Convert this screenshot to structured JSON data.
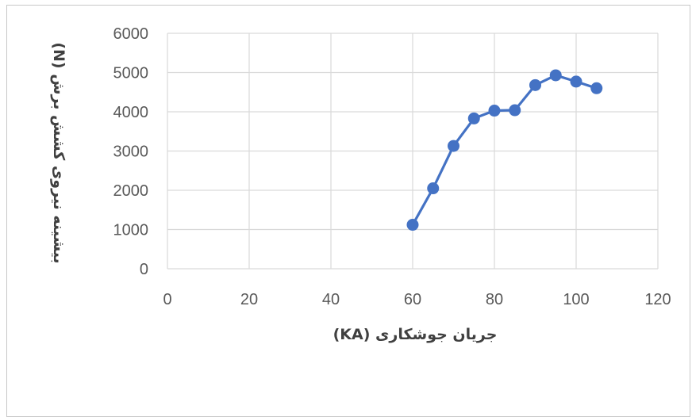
{
  "chart_data": {
    "type": "scatter",
    "xlabel": "جریان جوشکاری (KA)",
    "ylabel": "بیشینه نیروی کشش برش (N)",
    "xlim": [
      0,
      120
    ],
    "ylim": [
      0,
      6000
    ],
    "xticks": [
      "0",
      "20",
      "40",
      "60",
      "80",
      "100",
      "120"
    ],
    "yticks": [
      "0",
      "1000",
      "2000",
      "3000",
      "4000",
      "5000",
      "6000"
    ],
    "grid": true,
    "legend": "none",
    "series": [
      {
        "color": "#4472C4",
        "x": [
          60,
          65,
          70,
          75,
          80,
          85,
          90,
          95,
          100,
          105
        ],
        "y": [
          1120,
          2050,
          3130,
          3830,
          4030,
          4040,
          4680,
          4930,
          4770,
          4600
        ]
      }
    ]
  }
}
